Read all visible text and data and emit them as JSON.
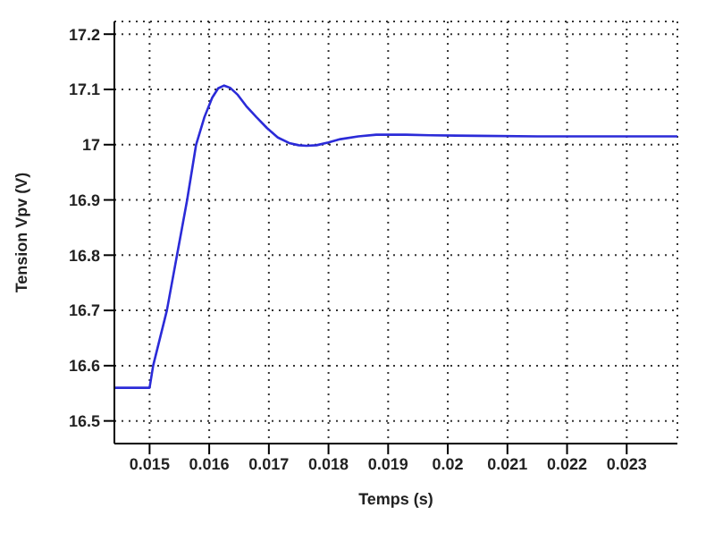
{
  "chart_data": {
    "type": "line",
    "xlabel": "Temps (s)",
    "ylabel": "Tension Vpv (V)",
    "x": [
      0.01441,
      0.015,
      0.01506,
      0.01529,
      0.01546,
      0.01563,
      0.01578,
      0.01592,
      0.01605,
      0.01615,
      0.01625,
      0.01635,
      0.01648,
      0.01662,
      0.01679,
      0.01697,
      0.01715,
      0.01734,
      0.0175,
      0.01763,
      0.0178,
      0.018,
      0.0182,
      0.0185,
      0.0188,
      0.019,
      0.0193,
      0.0197,
      0.0205,
      0.0215,
      0.02385
    ],
    "series": [
      {
        "color": "#2b2bd8",
        "values": [
          16.56,
          16.56,
          16.6,
          16.7,
          16.8,
          16.9,
          17.0,
          17.05,
          17.085,
          17.102,
          17.107,
          17.103,
          17.09,
          17.07,
          17.05,
          17.03,
          17.013,
          17.003,
          16.999,
          16.998,
          16.999,
          17.004,
          17.01,
          17.015,
          17.018,
          17.018,
          17.018,
          17.017,
          17.016,
          17.015,
          17.015
        ]
      }
    ],
    "xlim": [
      0.01441,
      0.02385
    ],
    "xticks": [
      0.015,
      0.016,
      0.017,
      0.018,
      0.019,
      0.02,
      0.021,
      0.022,
      0.023
    ],
    "ylim": [
      16.459,
      17.223
    ],
    "yticks": [
      16.5,
      16.6,
      16.7,
      16.8,
      16.9,
      17,
      17.1,
      17.2
    ],
    "grid": true,
    "line_style": "solid",
    "marker": "none"
  }
}
